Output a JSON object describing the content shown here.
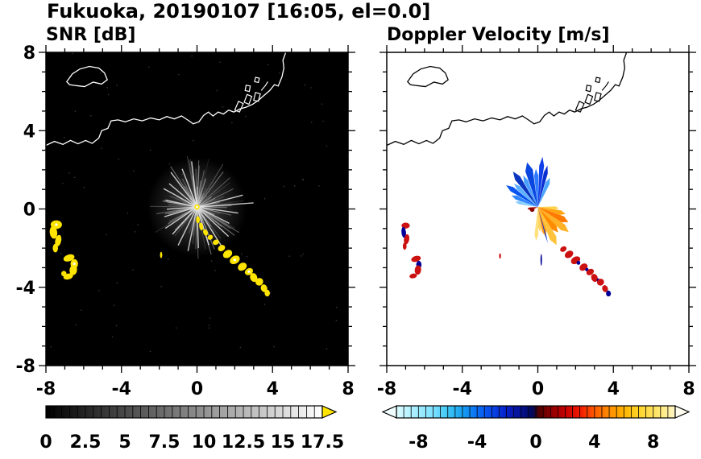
{
  "title": "Fukuoka, 20190107 [16:05, el=0.0]",
  "panels": [
    {
      "id": "snr",
      "title": "SNR [dB]",
      "bg": "#000000",
      "coast_color": "#ffffff"
    },
    {
      "id": "vel",
      "title": "Doppler Velocity [m/s]",
      "bg": "#ffffff",
      "coast_color": "#000000"
    }
  ],
  "axes": {
    "xlim": [
      -8,
      8
    ],
    "ylim": [
      -8,
      8
    ],
    "x_tick_values": [
      -8,
      -4,
      0,
      4,
      8
    ],
    "x_tick_labels": [
      "-8",
      "-4",
      "0",
      "4",
      "8"
    ],
    "y_tick_values": [
      8,
      4,
      0,
      -4,
      -8
    ],
    "y_tick_labels": [
      "8",
      "4",
      "0",
      "-4",
      "-8"
    ],
    "minor_step": 1
  },
  "radar_center": [
    0,
    0.1
  ],
  "map": {
    "coastline": [
      [
        -8,
        3.25
      ],
      [
        -7.55,
        3.45
      ],
      [
        -7.1,
        3.3
      ],
      [
        -6.7,
        3.5
      ],
      [
        -6.3,
        3.33
      ],
      [
        -5.9,
        3.5
      ],
      [
        -5.55,
        3.35
      ],
      [
        -5.2,
        3.62
      ],
      [
        -5.05,
        4.0
      ],
      [
        -4.72,
        4.12
      ],
      [
        -4.55,
        4.5
      ],
      [
        -4.18,
        4.55
      ],
      [
        -3.8,
        4.45
      ],
      [
        -3.35,
        4.6
      ],
      [
        -2.9,
        4.5
      ],
      [
        -2.45,
        4.65
      ],
      [
        -2.0,
        4.55
      ],
      [
        -1.6,
        4.72
      ],
      [
        -1.2,
        4.6
      ],
      [
        -0.82,
        4.75
      ],
      [
        -0.5,
        4.55
      ],
      [
        -0.2,
        4.35
      ],
      [
        0.1,
        4.45
      ],
      [
        0.35,
        4.78
      ],
      [
        0.6,
        4.95
      ],
      [
        0.85,
        4.75
      ],
      [
        1.12,
        4.95
      ],
      [
        1.4,
        4.85
      ],
      [
        1.68,
        5.05
      ],
      [
        1.95,
        4.95
      ],
      [
        2.3,
        5.12
      ],
      [
        2.6,
        5.2
      ],
      [
        2.95,
        5.35
      ],
      [
        3.25,
        5.55
      ],
      [
        3.55,
        5.8
      ],
      [
        3.85,
        6.05
      ],
      [
        4.1,
        6.35
      ],
      [
        4.3,
        6.28
      ],
      [
        4.5,
        6.75
      ],
      [
        4.6,
        7.2
      ],
      [
        4.55,
        7.6
      ],
      [
        4.7,
        8.0
      ]
    ],
    "island": [
      [
        -6.9,
        6.5
      ],
      [
        -6.6,
        6.9
      ],
      [
        -6.2,
        7.15
      ],
      [
        -5.7,
        7.28
      ],
      [
        -5.2,
        7.2
      ],
      [
        -4.9,
        6.95
      ],
      [
        -4.75,
        6.6
      ],
      [
        -5.05,
        6.38
      ],
      [
        -5.5,
        6.48
      ],
      [
        -5.95,
        6.25
      ],
      [
        -6.4,
        6.3
      ],
      [
        -6.75,
        6.35
      ]
    ],
    "harbors": [
      [
        [
          2.0,
          5.05
        ],
        [
          2.2,
          5.5
        ],
        [
          2.45,
          5.38
        ],
        [
          2.25,
          4.95
        ]
      ],
      [
        [
          2.5,
          5.45
        ],
        [
          2.65,
          5.85
        ],
        [
          2.9,
          5.75
        ],
        [
          2.75,
          5.35
        ]
      ],
      [
        [
          3.0,
          5.55
        ],
        [
          3.1,
          5.95
        ],
        [
          3.35,
          5.88
        ],
        [
          3.25,
          5.5
        ]
      ],
      [
        [
          2.55,
          6.05
        ],
        [
          2.6,
          6.32
        ],
        [
          2.82,
          6.28
        ],
        [
          2.77,
          6.0
        ]
      ],
      [
        [
          3.05,
          6.5
        ],
        [
          3.1,
          6.72
        ],
        [
          3.3,
          6.68
        ],
        [
          3.25,
          6.46
        ]
      ]
    ],
    "harbor_line": [
      [
        3.4,
        6.05
      ],
      [
        3.62,
        6.3
      ],
      [
        3.75,
        6.5
      ]
    ]
  },
  "snr": {
    "streak_count": 130,
    "streak_seed": 13,
    "noise_dots": 80,
    "echo_color": "#ffe400",
    "long_rays": [
      [
        4,
        3.0
      ],
      [
        14,
        2.5
      ],
      [
        352,
        2.2
      ],
      [
        97,
        2.35
      ],
      [
        112,
        2.1
      ],
      [
        128,
        2.25
      ],
      [
        141,
        1.9
      ],
      [
        152,
        2.0
      ],
      [
        168,
        1.7
      ],
      [
        184,
        1.6
      ],
      [
        196,
        1.8
      ],
      [
        213,
        2.0
      ],
      [
        227,
        1.9
      ],
      [
        243,
        2.2
      ],
      [
        258,
        2.3
      ],
      [
        272,
        2.1
      ],
      [
        288,
        2.05
      ],
      [
        303,
        2.35
      ],
      [
        318,
        2.25
      ],
      [
        334,
        1.9
      ]
    ],
    "blobs": [
      [
        -7.45,
        -0.8,
        0.3,
        0.22,
        0
      ],
      [
        -7.6,
        -1.2,
        0.2,
        0.32,
        8
      ],
      [
        -7.35,
        -1.62,
        0.16,
        0.3,
        -12
      ],
      [
        -7.5,
        -2.0,
        0.14,
        0.22,
        0
      ],
      [
        -6.78,
        -2.5,
        0.3,
        0.17,
        18
      ],
      [
        -6.5,
        -2.8,
        0.2,
        0.24,
        0
      ],
      [
        -6.55,
        -3.12,
        0.2,
        0.26,
        -8
      ],
      [
        -6.82,
        -3.45,
        0.26,
        0.15,
        14
      ],
      [
        -7.05,
        -3.3,
        0.14,
        0.14,
        0
      ],
      [
        0.05,
        -0.55,
        0.1,
        0.18,
        0
      ],
      [
        0.22,
        -0.9,
        0.1,
        0.2,
        12
      ],
      [
        0.45,
        -1.2,
        0.12,
        0.17,
        22
      ],
      [
        0.7,
        -1.45,
        0.15,
        0.12,
        30
      ],
      [
        1.0,
        -1.7,
        0.17,
        0.13,
        26
      ],
      [
        1.3,
        -2.0,
        0.2,
        0.15,
        30
      ],
      [
        1.62,
        -2.3,
        0.26,
        0.19,
        34
      ],
      [
        2.0,
        -2.6,
        0.28,
        0.2,
        30
      ],
      [
        2.4,
        -2.95,
        0.25,
        0.19,
        34
      ],
      [
        2.75,
        -3.2,
        0.23,
        0.17,
        30
      ],
      [
        3.0,
        -3.5,
        0.19,
        0.23,
        20
      ],
      [
        3.3,
        -3.72,
        0.21,
        0.19,
        38
      ],
      [
        3.55,
        -4.05,
        0.17,
        0.2,
        20
      ],
      [
        3.72,
        -4.3,
        0.14,
        0.17,
        0
      ],
      [
        -1.9,
        -2.35,
        0.06,
        0.16,
        0
      ]
    ],
    "speckles": [
      [
        -7.45,
        -0.8
      ],
      [
        -6.5,
        -2.8
      ],
      [
        2.0,
        -2.6
      ],
      [
        2.75,
        -3.2
      ]
    ]
  },
  "vel": {
    "colors": {
      "r": "#cc1111",
      "n": "#000099",
      "d": "#8b0000"
    },
    "wedges": [
      [
        62,
        72,
        1.45,
        "#4da6ff"
      ],
      [
        73,
        80,
        1.95,
        "#0a2fd0"
      ],
      [
        81,
        88,
        2.3,
        "#1040e8"
      ],
      [
        89,
        97,
        1.75,
        "#2e7bff"
      ],
      [
        98,
        110,
        2.1,
        "#0a47e0"
      ],
      [
        111,
        120,
        1.6,
        "#49a0ff"
      ],
      [
        121,
        131,
        2.0,
        "#0a35c0"
      ],
      [
        132,
        141,
        1.55,
        "#5cb0ff"
      ],
      [
        142,
        151,
        1.8,
        "#0a55f0"
      ],
      [
        152,
        162,
        1.35,
        "#2f86ff"
      ],
      [
        163,
        172,
        1.1,
        "#86ccff"
      ],
      [
        -8,
        2,
        1.0,
        "#ffd24d"
      ],
      [
        -19,
        -8,
        1.35,
        "#ffa511"
      ],
      [
        -32,
        -19,
        1.6,
        "#ff7a00"
      ],
      [
        -44,
        -32,
        1.85,
        "#ffb226"
      ],
      [
        -57,
        -44,
        1.5,
        "#ff8c00"
      ],
      [
        -69,
        -57,
        1.95,
        "#ffc23a"
      ],
      [
        -80,
        -69,
        1.4,
        "#ff9a1e"
      ],
      [
        -89,
        -80,
        1.15,
        "#ffd666"
      ],
      [
        -97,
        -89,
        1.55,
        "#ffe07a"
      ],
      [
        -75,
        -73,
        1.7,
        "#0033cc"
      ],
      [
        183,
        198,
        0.5,
        "#a00000"
      ],
      [
        200,
        210,
        0.35,
        "#cc2200"
      ]
    ],
    "blobs": [
      [
        -7.0,
        -0.85,
        0.22,
        0.15,
        0,
        "r"
      ],
      [
        -7.1,
        -1.2,
        0.12,
        0.28,
        6,
        "n"
      ],
      [
        -6.95,
        -1.55,
        0.14,
        0.26,
        -10,
        "r"
      ],
      [
        -7.05,
        -1.9,
        0.1,
        0.18,
        0,
        "r"
      ],
      [
        -6.45,
        -2.55,
        0.26,
        0.15,
        16,
        "r"
      ],
      [
        -6.3,
        -2.85,
        0.14,
        0.2,
        0,
        "n"
      ],
      [
        -6.35,
        -3.12,
        0.17,
        0.24,
        -6,
        "r"
      ],
      [
        -6.6,
        -3.42,
        0.2,
        0.12,
        12,
        "r"
      ],
      [
        1.35,
        -2.05,
        0.18,
        0.13,
        30,
        "r"
      ],
      [
        1.65,
        -2.32,
        0.24,
        0.17,
        34,
        "r"
      ],
      [
        2.0,
        -2.62,
        0.26,
        0.18,
        30,
        "r"
      ],
      [
        2.15,
        -2.75,
        0.1,
        0.1,
        0,
        "n"
      ],
      [
        2.42,
        -2.97,
        0.23,
        0.17,
        34,
        "r"
      ],
      [
        2.6,
        -3.1,
        0.09,
        0.09,
        0,
        "n"
      ],
      [
        2.77,
        -3.22,
        0.21,
        0.15,
        30,
        "r"
      ],
      [
        3.0,
        -3.52,
        0.17,
        0.21,
        20,
        "r"
      ],
      [
        3.2,
        -3.65,
        0.08,
        0.1,
        0,
        "n"
      ],
      [
        3.32,
        -3.74,
        0.19,
        0.17,
        38,
        "r"
      ],
      [
        3.56,
        -4.07,
        0.15,
        0.18,
        20,
        "r"
      ],
      [
        3.74,
        -4.32,
        0.13,
        0.15,
        0,
        "n"
      ],
      [
        0.18,
        -2.6,
        0.04,
        0.3,
        0,
        "n"
      ],
      [
        -2.0,
        -2.4,
        0.05,
        0.14,
        0,
        "r"
      ],
      [
        -0.3,
        -0.05,
        0.12,
        0.1,
        0,
        "d"
      ]
    ]
  },
  "colorbars": [
    {
      "panel": "snr",
      "min": 0,
      "max": 17.5,
      "segment": 0.5,
      "labels": [
        "0",
        "2.5",
        "5",
        "7.5",
        "10",
        "12.5",
        "15",
        "17.5"
      ],
      "label_values": [
        0,
        2.5,
        5,
        7.5,
        10,
        12.5,
        15,
        17.5
      ],
      "gradient_from": "#000000",
      "gradient_to": "#ffffff",
      "over_color": "#ffe400",
      "arrow_left": false,
      "arrow_right": true
    },
    {
      "panel": "vel",
      "min": -9.5,
      "max": 9.5,
      "segment": 0.5,
      "labels": [
        "-8",
        "-4",
        "0",
        "4",
        "8"
      ],
      "label_values": [
        -8,
        -4,
        0,
        4,
        8
      ],
      "stops": [
        [
          -9.5,
          "#dcfcff"
        ],
        [
          -8.5,
          "#b0f0ff"
        ],
        [
          -7,
          "#7fe2ff"
        ],
        [
          -6,
          "#3ec6f5"
        ],
        [
          -5,
          "#18a0f0"
        ],
        [
          -4,
          "#0a6ef5"
        ],
        [
          -3,
          "#0846e8"
        ],
        [
          -2,
          "#0620c8"
        ],
        [
          -1,
          "#041090"
        ],
        [
          -0.2,
          "#020858"
        ],
        [
          0.2,
          "#500000"
        ],
        [
          1,
          "#8c0000"
        ],
        [
          2,
          "#c40000"
        ],
        [
          3,
          "#f01800"
        ],
        [
          4,
          "#ff5a00"
        ],
        [
          5,
          "#ff8c00"
        ],
        [
          6,
          "#ffb400"
        ],
        [
          7,
          "#ffd428"
        ],
        [
          8.5,
          "#ffe878"
        ],
        [
          9.5,
          "#fff6c8"
        ]
      ],
      "under_color": "#f0feff",
      "over_color": "#fffdf0",
      "arrow_left": true,
      "arrow_right": true
    }
  ],
  "chart_data": [
    {
      "type": "heatmap",
      "title": "SNR [dB]",
      "xlabel": "",
      "ylabel": "",
      "xlim": [
        -8,
        8
      ],
      "ylim": [
        -8,
        8
      ],
      "x_ticks": [
        -8,
        -4,
        0,
        4,
        8
      ],
      "y_ticks": [
        -8,
        -4,
        0,
        4,
        8
      ],
      "colorbar_range": [
        0,
        17.5
      ],
      "colorbar_tick_labels": [
        "0",
        "2.5",
        "5",
        "7.5",
        "10",
        "12.5",
        "15",
        "17.5"
      ],
      "colormap": "black-to-white grayscale, yellow over-range arrow",
      "description": "Radar PPI of signal-to-noise ratio on black background; gray clutter streaks radiate from the radar at the origin; strong (~17.5+ dB, yellow) echo patches near (-7.5,-0.8) to (-6.5,-3.5) and an echo chain from (0,-0.5) to (3.7,-4.3); coastline of Fukuoka drawn in white across the top."
    },
    {
      "type": "heatmap",
      "title": "Doppler Velocity [m/s]",
      "xlabel": "",
      "ylabel": "",
      "xlim": [
        -8,
        8
      ],
      "ylim": [
        -8,
        8
      ],
      "x_ticks": [
        -8,
        -4,
        0,
        4,
        8
      ],
      "y_ticks": [
        -8,
        -4,
        0,
        4,
        8
      ],
      "colorbar_range": [
        -9.5,
        9.5
      ],
      "colorbar_tick_labels": [
        "-8",
        "-4",
        "0",
        "4",
        "8"
      ],
      "colormap": "diverging cyan-blue (negative) to dark-red-orange-yellow (positive), white under/over arrows",
      "description": "Radar PPI of Doppler velocity on white background; blue fan (negative, toward radar) northwest of origin and orange/yellow fan (positive, away) southeast of origin; red and navy echo patches near (-7,-1) to (-6.3,-3.5) and a chain from (1.3,-2) to (3.7,-4.3); coastline drawn in black."
    }
  ]
}
